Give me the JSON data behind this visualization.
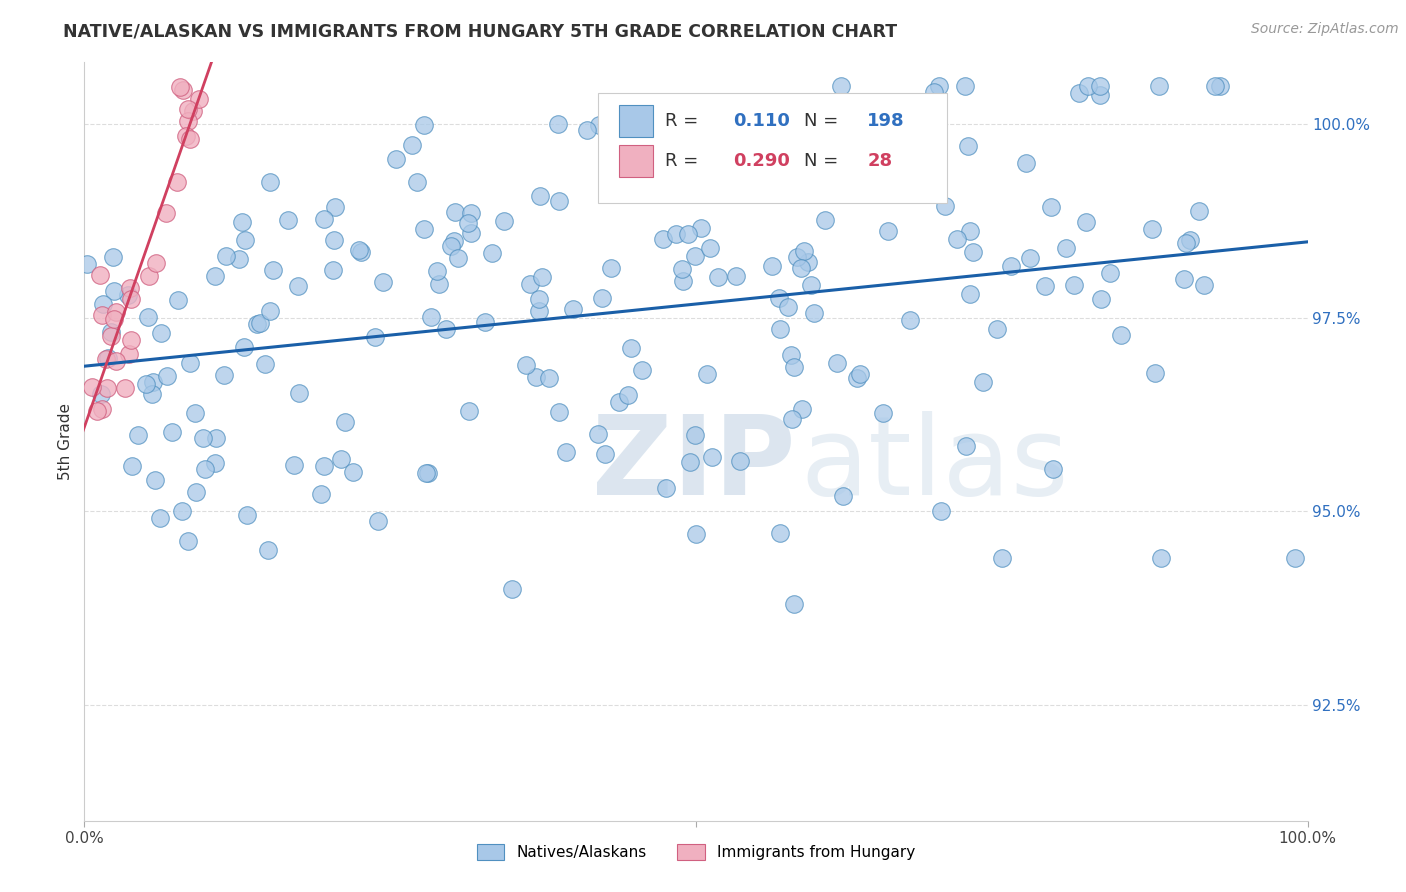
{
  "title": "NATIVE/ALASKAN VS IMMIGRANTS FROM HUNGARY 5TH GRADE CORRELATION CHART",
  "source_text": "Source: ZipAtlas.com",
  "ylabel": "5th Grade",
  "xlim": [
    0.0,
    1.0
  ],
  "ylim": [
    0.91,
    1.008
  ],
  "yticks": [
    0.925,
    0.95,
    0.975,
    1.0
  ],
  "ytick_labels": [
    "92.5%",
    "95.0%",
    "97.5%",
    "100.0%"
  ],
  "xticks": [
    0.0,
    0.5,
    1.0
  ],
  "xtick_labels": [
    "0.0%",
    "",
    "100.0%"
  ],
  "legend_r_blue": "0.110",
  "legend_n_blue": "198",
  "legend_r_pink": "0.290",
  "legend_n_pink": "28",
  "blue_scatter_color": "#a8c8e8",
  "blue_edge_color": "#5090c0",
  "blue_line_color": "#1a5fa8",
  "pink_scatter_color": "#f0b0c0",
  "pink_edge_color": "#d06080",
  "pink_line_color": "#d04060",
  "watermark_zip": "ZIP",
  "watermark_atlas": "atlas",
  "grid_color": "#dddddd",
  "title_color": "#333333",
  "source_color": "#999999",
  "ytick_color": "#3070c0"
}
